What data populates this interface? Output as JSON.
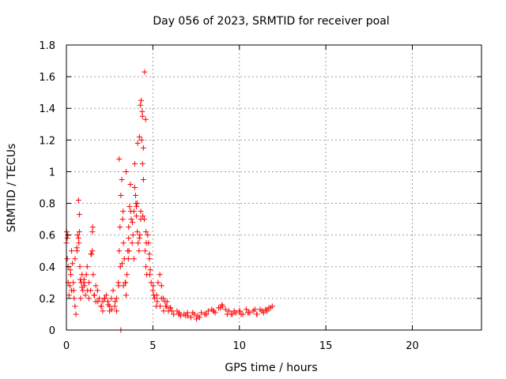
{
  "colors": {
    "series": "#ff0000",
    "grid": "#a0a0a0",
    "axis": "#000000",
    "background": "#ffffff"
  },
  "chart_data": {
    "type": "scatter",
    "title": "Day 056 of 2023, SRMTID for receiver poal",
    "xlabel": "GPS time / hours",
    "ylabel": "SRMTID / TECUs",
    "xlim": [
      0,
      24
    ],
    "ylim": [
      0,
      1.8
    ],
    "xticks": [
      0,
      5,
      10,
      15,
      20
    ],
    "xtick_labels": [
      "0",
      "5",
      "10",
      "15",
      "20"
    ],
    "yticks": [
      0,
      0.2,
      0.4,
      0.6,
      0.8,
      1.0,
      1.2,
      1.4,
      1.6,
      1.8
    ],
    "ytick_labels": [
      "0",
      "0.2",
      "0.4",
      "0.6",
      "0.8",
      "1",
      "1.2",
      "1.4",
      "1.6",
      "1.8"
    ],
    "grid": true,
    "marker": "plus",
    "series": [
      {
        "name": "SRMTID",
        "x": [
          0.0,
          0.05,
          0.1,
          0.15,
          0.2,
          0.25,
          0.3,
          0.35,
          0.4,
          0.45,
          0.5,
          0.55,
          0.6,
          0.65,
          0.7,
          0.72,
          0.75,
          0.78,
          0.8,
          0.85,
          0.9,
          0.95,
          1.0,
          1.05,
          1.1,
          1.15,
          1.2,
          1.3,
          1.4,
          1.45,
          1.5,
          1.55,
          1.6,
          1.7,
          1.8,
          1.9,
          2.0,
          2.1,
          2.2,
          2.3,
          2.4,
          2.5,
          2.6,
          2.7,
          2.8,
          2.9,
          3.0,
          3.05,
          3.1,
          3.15,
          3.2,
          3.25,
          3.3,
          3.35,
          3.4,
          3.45,
          3.5,
          3.55,
          3.6,
          3.65,
          3.7,
          3.75,
          3.8,
          3.85,
          3.9,
          3.95,
          4.0,
          4.05,
          4.1,
          4.15,
          4.2,
          4.25,
          4.3,
          4.35,
          4.4,
          4.45,
          4.5,
          4.55,
          4.6,
          4.65,
          4.7,
          4.75,
          4.8,
          4.85,
          4.9,
          5.0,
          5.1,
          5.2,
          5.3,
          5.4,
          5.5,
          5.6,
          5.7,
          5.8,
          5.9,
          6.0,
          6.2,
          6.4,
          6.6,
          6.8,
          7.0,
          7.2,
          7.4,
          7.6,
          7.8,
          8.0,
          8.2,
          8.4,
          8.6,
          8.8,
          9.0,
          9.2,
          9.4,
          9.6,
          9.8,
          10.0,
          10.2,
          10.4,
          10.6,
          10.8,
          11.0,
          11.2,
          11.4,
          11.6,
          11.8,
          11.9,
          0.1,
          0.3,
          0.5,
          0.9,
          1.3,
          1.7,
          2.1,
          2.5,
          2.9,
          3.3,
          3.6,
          3.9,
          4.1,
          4.3,
          4.4,
          4.6,
          4.8,
          5.05,
          5.25,
          5.5,
          5.75,
          6.1,
          6.5,
          6.9,
          7.3,
          7.7,
          8.1,
          8.5,
          8.9,
          9.3,
          9.7,
          10.1,
          10.5,
          10.9,
          11.3,
          11.7,
          0.02,
          0.22,
          0.42,
          0.62,
          0.82,
          1.02,
          1.22,
          1.42,
          1.62,
          1.82,
          2.02,
          2.22,
          2.42,
          2.62,
          2.82,
          3.02,
          3.22,
          3.42,
          3.62,
          3.82,
          4.02,
          4.22,
          4.42,
          4.62,
          4.82,
          5.02,
          5.22,
          5.42,
          5.62,
          5.82,
          6.02,
          6.52,
          7.02,
          7.52,
          8.02,
          8.52,
          9.02,
          9.52,
          10.02,
          10.52,
          11.02,
          11.52,
          3.05,
          3.12,
          3.28,
          3.45,
          3.72,
          3.95,
          4.05,
          4.12,
          4.22,
          4.28,
          4.32,
          4.38,
          4.45,
          4.52,
          4.58,
          0.75,
          0.7,
          1.5,
          1.52,
          0.05,
          0.08,
          3.15,
          3.58
        ],
        "y": [
          0.55,
          0.45,
          0.3,
          0.22,
          0.28,
          0.35,
          0.5,
          0.42,
          0.3,
          0.2,
          0.15,
          0.1,
          0.52,
          0.6,
          0.58,
          0.55,
          0.62,
          0.4,
          0.32,
          0.3,
          0.27,
          0.25,
          0.3,
          0.28,
          0.22,
          0.35,
          0.4,
          0.3,
          0.25,
          0.48,
          0.5,
          0.35,
          0.22,
          0.18,
          0.25,
          0.2,
          0.15,
          0.12,
          0.2,
          0.22,
          0.18,
          0.12,
          0.2,
          0.25,
          0.15,
          0.2,
          0.3,
          0.5,
          0.65,
          0.85,
          0.95,
          0.7,
          0.55,
          0.45,
          0.3,
          0.22,
          0.35,
          0.5,
          0.65,
          0.78,
          0.92,
          0.7,
          0.55,
          0.6,
          0.75,
          0.9,
          0.85,
          0.72,
          0.62,
          0.55,
          0.5,
          0.6,
          0.75,
          1.2,
          1.35,
          0.95,
          0.7,
          0.5,
          0.4,
          0.35,
          0.6,
          0.55,
          0.45,
          0.38,
          0.3,
          0.25,
          0.2,
          0.15,
          0.3,
          0.35,
          0.28,
          0.2,
          0.18,
          0.15,
          0.12,
          0.14,
          0.1,
          0.12,
          0.09,
          0.1,
          0.11,
          0.08,
          0.1,
          0.09,
          0.11,
          0.1,
          0.12,
          0.13,
          0.11,
          0.14,
          0.16,
          0.13,
          0.12,
          0.1,
          0.11,
          0.12,
          0.1,
          0.13,
          0.11,
          0.12,
          0.1,
          0.13,
          0.11,
          0.12,
          0.14,
          0.15,
          0.4,
          0.25,
          0.45,
          0.35,
          0.2,
          0.28,
          0.18,
          0.15,
          0.12,
          0.28,
          0.58,
          0.45,
          0.8,
          0.7,
          1.05,
          0.62,
          0.48,
          0.22,
          0.18,
          0.2,
          0.15,
          0.12,
          0.1,
          0.09,
          0.11,
          0.08,
          0.1,
          0.12,
          0.14,
          0.1,
          0.12,
          0.1,
          0.11,
          0.13,
          0.12,
          0.14,
          0.62,
          0.38,
          0.25,
          0.5,
          0.2,
          0.32,
          0.25,
          0.48,
          0.22,
          0.18,
          0.15,
          0.2,
          0.16,
          0.13,
          0.18,
          0.28,
          0.42,
          0.3,
          0.5,
          0.68,
          0.8,
          0.58,
          0.72,
          0.55,
          0.35,
          0.28,
          0.22,
          0.15,
          0.12,
          0.18,
          0.14,
          0.11,
          0.09,
          0.07,
          0.1,
          0.12,
          0.15,
          0.1,
          0.12,
          0.11,
          0.1,
          0.13,
          1.08,
          0.4,
          0.75,
          1.0,
          0.75,
          1.05,
          0.78,
          1.18,
          1.22,
          1.42,
          1.45,
          1.38,
          1.15,
          1.63,
          1.33,
          0.73,
          0.82,
          0.62,
          0.65,
          0.58,
          0.6,
          0.0,
          0.45
        ]
      }
    ]
  }
}
